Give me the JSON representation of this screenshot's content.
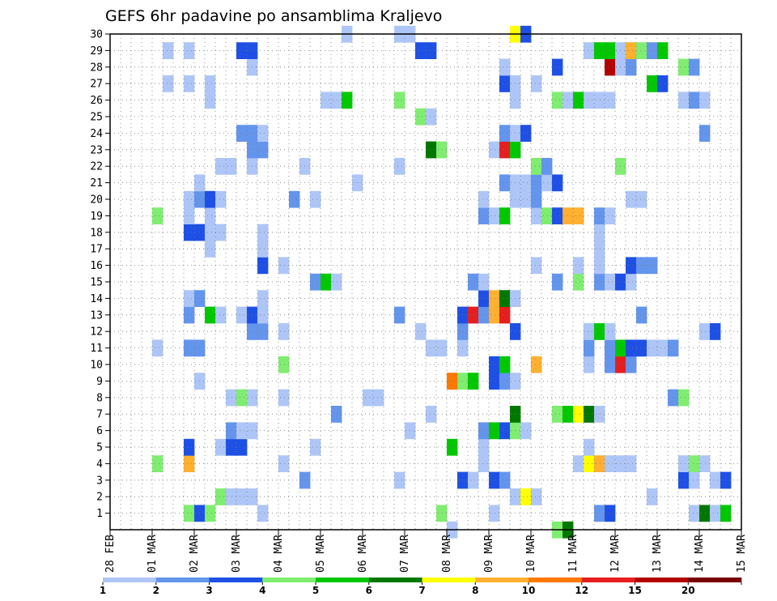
{
  "chart_data": {
    "type": "heatmap",
    "title": "GEFS 6hr padavine po ansamblima Kraljevo",
    "xlabel": "",
    "ylabel": "",
    "y_ticks": [
      1,
      2,
      3,
      4,
      5,
      6,
      7,
      8,
      9,
      10,
      11,
      12,
      13,
      14,
      15,
      16,
      17,
      18,
      19,
      20,
      21,
      22,
      23,
      24,
      25,
      26,
      27,
      28,
      29,
      30
    ],
    "x_ticks": [
      "28 FEB",
      "01 MAR",
      "02 MAR",
      "03 MAR",
      "04 MAR",
      "05 MAR",
      "06 MAR",
      "07 MAR",
      "08 MAR",
      "09 MAR",
      "10 MAR",
      "11 MAR",
      "12 MAR",
      "13 MAR",
      "14 MAR",
      "15 MAR"
    ],
    "steps_per_day": 4,
    "ylim": [
      0,
      30
    ],
    "grid": true,
    "legend": {
      "placement": "bottom",
      "labels": [
        "1",
        "2",
        "3",
        "4",
        "5",
        "6",
        "7",
        "8",
        "10",
        "12",
        "15",
        "20"
      ],
      "colors": [
        "#aec6f7",
        "#6495ed",
        "#1e50e6",
        "#7fee70",
        "#00c800",
        "#007800",
        "#ffff00",
        "#ffb030",
        "#ff7800",
        "#e61e1e",
        "#b40000",
        "#780000"
      ]
    },
    "color_classes": {
      "1": "#aec6f7",
      "2": "#6495ed",
      "3": "#1e50e6",
      "4": "#7fee70",
      "5": "#00c800",
      "6": "#007800",
      "7": "#ffff00",
      "8": "#ffb030",
      "9": "#ff7800",
      "10": "#e61e1e",
      "11": "#b40000"
    },
    "cells": {
      "30": [
        [
          22,
          1
        ],
        [
          27,
          1
        ],
        [
          28,
          1
        ],
        [
          38,
          7
        ],
        [
          39,
          3
        ]
      ],
      "29": [
        [
          5,
          1
        ],
        [
          7,
          1
        ],
        [
          12,
          3
        ],
        [
          13,
          3
        ],
        [
          29,
          3
        ],
        [
          30,
          3
        ],
        [
          45,
          1
        ],
        [
          46,
          5
        ],
        [
          47,
          5
        ],
        [
          48,
          1
        ],
        [
          49,
          8
        ],
        [
          50,
          4
        ],
        [
          51,
          2
        ],
        [
          52,
          5
        ]
      ],
      "28": [
        [
          13,
          1
        ],
        [
          37,
          1
        ],
        [
          42,
          3
        ],
        [
          47,
          11
        ],
        [
          48,
          1
        ],
        [
          49,
          2
        ],
        [
          54,
          4
        ],
        [
          55,
          2
        ]
      ],
      "27": [
        [
          5,
          1
        ],
        [
          7,
          1
        ],
        [
          9,
          1
        ],
        [
          37,
          3
        ],
        [
          38,
          1
        ],
        [
          40,
          1
        ],
        [
          51,
          5
        ],
        [
          52,
          3
        ]
      ],
      "26": [
        [
          9,
          1
        ],
        [
          20,
          1
        ],
        [
          21,
          1
        ],
        [
          22,
          5
        ],
        [
          27,
          4
        ],
        [
          38,
          1
        ],
        [
          42,
          4
        ],
        [
          43,
          1
        ],
        [
          44,
          5
        ],
        [
          45,
          1
        ],
        [
          46,
          1
        ],
        [
          47,
          1
        ],
        [
          54,
          1
        ],
        [
          55,
          2
        ],
        [
          56,
          1
        ]
      ],
      "25": [
        [
          29,
          4
        ],
        [
          30,
          1
        ]
      ],
      "24": [
        [
          12,
          2
        ],
        [
          13,
          2
        ],
        [
          14,
          1
        ],
        [
          37,
          2
        ],
        [
          38,
          1
        ],
        [
          39,
          3
        ],
        [
          56,
          2
        ]
      ],
      "23": [
        [
          13,
          2
        ],
        [
          14,
          2
        ],
        [
          30,
          6
        ],
        [
          31,
          4
        ],
        [
          36,
          1
        ],
        [
          37,
          10
        ],
        [
          38,
          5
        ]
      ],
      "22": [
        [
          10,
          1
        ],
        [
          11,
          1
        ],
        [
          13,
          1
        ],
        [
          18,
          1
        ],
        [
          27,
          1
        ],
        [
          40,
          4
        ],
        [
          41,
          2
        ],
        [
          48,
          4
        ]
      ],
      "21": [
        [
          8,
          1
        ],
        [
          23,
          1
        ],
        [
          37,
          2
        ],
        [
          38,
          1
        ],
        [
          39,
          1
        ],
        [
          40,
          2
        ],
        [
          41,
          1
        ],
        [
          42,
          3
        ]
      ],
      "20": [
        [
          7,
          1
        ],
        [
          8,
          2
        ],
        [
          9,
          3
        ],
        [
          10,
          1
        ],
        [
          17,
          2
        ],
        [
          19,
          1
        ],
        [
          35,
          1
        ],
        [
          38,
          1
        ],
        [
          39,
          1
        ],
        [
          40,
          2
        ],
        [
          49,
          1
        ],
        [
          50,
          1
        ]
      ],
      "19": [
        [
          4,
          4
        ],
        [
          7,
          1
        ],
        [
          9,
          1
        ],
        [
          35,
          2
        ],
        [
          36,
          1
        ],
        [
          37,
          5
        ],
        [
          40,
          1
        ],
        [
          41,
          4
        ],
        [
          42,
          3
        ],
        [
          43,
          8
        ],
        [
          44,
          8
        ],
        [
          46,
          2
        ],
        [
          47,
          1
        ]
      ],
      "18": [
        [
          7,
          3
        ],
        [
          8,
          3
        ],
        [
          9,
          1
        ],
        [
          10,
          1
        ],
        [
          14,
          1
        ],
        [
          46,
          1
        ]
      ],
      "17": [
        [
          9,
          1
        ],
        [
          14,
          1
        ],
        [
          46,
          1
        ]
      ],
      "16": [
        [
          14,
          3
        ],
        [
          16,
          1
        ],
        [
          40,
          1
        ],
        [
          44,
          1
        ],
        [
          46,
          1
        ],
        [
          49,
          3
        ],
        [
          50,
          2
        ],
        [
          51,
          2
        ]
      ],
      "15": [
        [
          19,
          2
        ],
        [
          20,
          5
        ],
        [
          21,
          1
        ],
        [
          34,
          2
        ],
        [
          35,
          1
        ],
        [
          42,
          2
        ],
        [
          44,
          4
        ],
        [
          46,
          2
        ],
        [
          47,
          1
        ],
        [
          48,
          3
        ],
        [
          49,
          1
        ]
      ],
      "14": [
        [
          7,
          1
        ],
        [
          8,
          2
        ],
        [
          14,
          1
        ],
        [
          35,
          3
        ],
        [
          36,
          8
        ],
        [
          37,
          6
        ],
        [
          38,
          1
        ]
      ],
      "13": [
        [
          7,
          2
        ],
        [
          9,
          5
        ],
        [
          10,
          1
        ],
        [
          12,
          1
        ],
        [
          13,
          3
        ],
        [
          14,
          1
        ],
        [
          27,
          2
        ],
        [
          33,
          3
        ],
        [
          34,
          10
        ],
        [
          35,
          2
        ],
        [
          36,
          8
        ],
        [
          37,
          10
        ],
        [
          50,
          2
        ]
      ],
      "12": [
        [
          13,
          2
        ],
        [
          14,
          2
        ],
        [
          16,
          1
        ],
        [
          29,
          1
        ],
        [
          33,
          2
        ],
        [
          38,
          3
        ],
        [
          45,
          1
        ],
        [
          46,
          5
        ],
        [
          47,
          1
        ],
        [
          56,
          1
        ],
        [
          57,
          3
        ]
      ],
      "11": [
        [
          4,
          1
        ],
        [
          7,
          2
        ],
        [
          8,
          2
        ],
        [
          30,
          1
        ],
        [
          31,
          1
        ],
        [
          33,
          1
        ],
        [
          45,
          2
        ],
        [
          47,
          2
        ],
        [
          48,
          5
        ],
        [
          49,
          3
        ],
        [
          50,
          3
        ],
        [
          51,
          1
        ],
        [
          52,
          1
        ],
        [
          53,
          2
        ]
      ],
      "10": [
        [
          16,
          4
        ],
        [
          36,
          3
        ],
        [
          37,
          5
        ],
        [
          40,
          8
        ],
        [
          45,
          1
        ],
        [
          47,
          2
        ],
        [
          48,
          10
        ],
        [
          49,
          2
        ]
      ],
      "9": [
        [
          8,
          1
        ],
        [
          32,
          9
        ],
        [
          33,
          4
        ],
        [
          34,
          5
        ],
        [
          36,
          3
        ],
        [
          37,
          2
        ],
        [
          38,
          1
        ]
      ],
      "8": [
        [
          11,
          1
        ],
        [
          12,
          4
        ],
        [
          13,
          1
        ],
        [
          16,
          1
        ],
        [
          24,
          1
        ],
        [
          25,
          1
        ],
        [
          53,
          2
        ],
        [
          54,
          4
        ]
      ],
      "7": [
        [
          21,
          2
        ],
        [
          30,
          1
        ],
        [
          38,
          6
        ],
        [
          42,
          4
        ],
        [
          43,
          5
        ],
        [
          44,
          7
        ],
        [
          45,
          6
        ],
        [
          46,
          1
        ]
      ],
      "6": [
        [
          11,
          2
        ],
        [
          12,
          1
        ],
        [
          13,
          1
        ],
        [
          28,
          1
        ],
        [
          35,
          2
        ],
        [
          36,
          5
        ],
        [
          37,
          3
        ],
        [
          38,
          4
        ],
        [
          39,
          1
        ]
      ],
      "5": [
        [
          7,
          3
        ],
        [
          10,
          1
        ],
        [
          11,
          3
        ],
        [
          12,
          3
        ],
        [
          19,
          1
        ],
        [
          32,
          5
        ],
        [
          35,
          1
        ],
        [
          45,
          1
        ]
      ],
      "4": [
        [
          4,
          4
        ],
        [
          7,
          8
        ],
        [
          16,
          1
        ],
        [
          35,
          1
        ],
        [
          44,
          1
        ],
        [
          45,
          7
        ],
        [
          46,
          8
        ],
        [
          47,
          1
        ],
        [
          48,
          1
        ],
        [
          49,
          1
        ],
        [
          54,
          1
        ],
        [
          55,
          4
        ],
        [
          56,
          1
        ]
      ],
      "3": [
        [
          18,
          2
        ],
        [
          27,
          1
        ],
        [
          33,
          3
        ],
        [
          34,
          1
        ],
        [
          36,
          3
        ],
        [
          37,
          2
        ],
        [
          54,
          3
        ],
        [
          55,
          1
        ],
        [
          57,
          1
        ],
        [
          58,
          3
        ]
      ],
      "2": [
        [
          10,
          4
        ],
        [
          11,
          1
        ],
        [
          12,
          1
        ],
        [
          13,
          1
        ],
        [
          38,
          1
        ],
        [
          39,
          7
        ],
        [
          40,
          1
        ],
        [
          51,
          1
        ]
      ],
      "1": [
        [
          7,
          4
        ],
        [
          8,
          3
        ],
        [
          9,
          4
        ],
        [
          14,
          1
        ],
        [
          31,
          4
        ],
        [
          36,
          1
        ],
        [
          46,
          2
        ],
        [
          47,
          3
        ],
        [
          55,
          1
        ],
        [
          56,
          6
        ],
        [
          57,
          1
        ],
        [
          58,
          5
        ]
      ],
      "0": [
        [
          32,
          1
        ],
        [
          42,
          4
        ],
        [
          43,
          6
        ]
      ]
    }
  }
}
